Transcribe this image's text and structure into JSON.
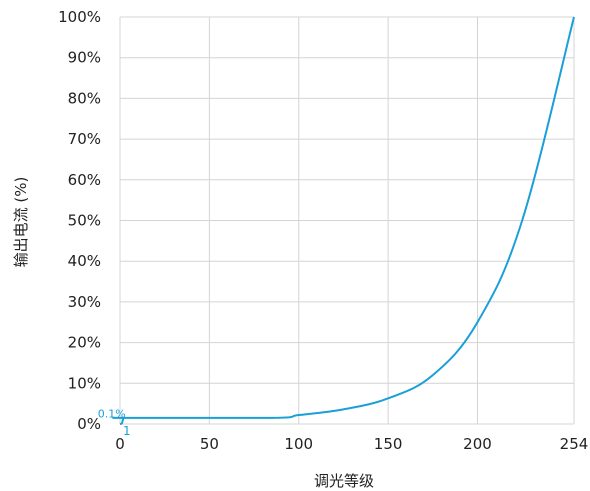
{
  "chart_data": {
    "type": "line",
    "xlabel": "调光等级",
    "ylabel": "输出电流 (%)",
    "xlim": [
      0,
      254
    ],
    "ylim": [
      0,
      100
    ],
    "x_ticks": [
      0,
      50,
      100,
      150,
      200,
      254
    ],
    "x_tick_labels": [
      "0",
      "50",
      "100",
      "150",
      "200",
      "254"
    ],
    "y_ticks": [
      0,
      10,
      20,
      30,
      40,
      50,
      60,
      70,
      80,
      90,
      100
    ],
    "y_tick_labels": [
      "0%",
      "10%",
      "20%",
      "30%",
      "40%",
      "50%",
      "60%",
      "70%",
      "80%",
      "90%",
      "100%"
    ],
    "grid": true,
    "line_color": "#1a9fd8",
    "annotations": [
      {
        "text": "0.1%",
        "x": 1,
        "y": 0.1
      },
      {
        "text": "1",
        "x": 1,
        "y": 0
      }
    ],
    "series": [
      {
        "x": [
          0,
          1,
          2,
          3,
          85,
          100,
          125,
          150,
          175,
          200,
          225,
          254
        ],
        "y": [
          0,
          0.1,
          1.5,
          1.5,
          1.5,
          2.2,
          3.6,
          6.3,
          12.0,
          25.0,
          50.0,
          100.0
        ]
      }
    ]
  }
}
